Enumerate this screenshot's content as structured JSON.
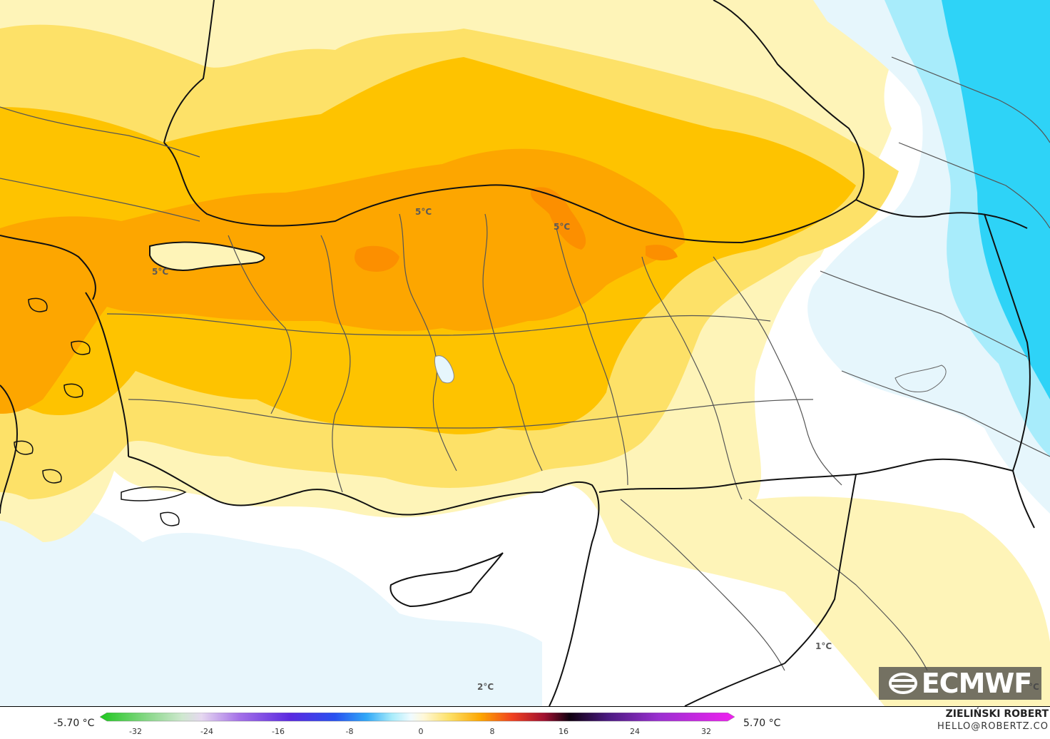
{
  "map": {
    "contour_labels": [
      {
        "id": "label-1",
        "text": "5°C"
      },
      {
        "id": "label-2",
        "text": "5°C"
      },
      {
        "id": "label-3",
        "text": "5°C"
      },
      {
        "id": "label-4",
        "text": "1°C"
      },
      {
        "id": "label-5",
        "text": "2°C"
      },
      {
        "id": "label-6",
        "text": "°C"
      }
    ]
  },
  "logo": {
    "text": "ECMWF"
  },
  "legend": {
    "min_label": "-5.70 °C",
    "max_label": "5.70 °C",
    "ticks": [
      "-32",
      "-24",
      "-16",
      "-8",
      "0",
      "8",
      "16",
      "24",
      "32"
    ],
    "colors": {
      "very_warm": "#fda600",
      "warm": "#fec300",
      "mild_warm": "#fde168",
      "slight_warm": "#fef4b8",
      "slight_cool": "#e6f6fc",
      "cool": "#a8ecfb",
      "cold": "#2ed3f7"
    }
  },
  "credit": {
    "name": "ZIELIŃSKI ROBERT",
    "email": "HELLO@ROBERTZ.CO"
  }
}
